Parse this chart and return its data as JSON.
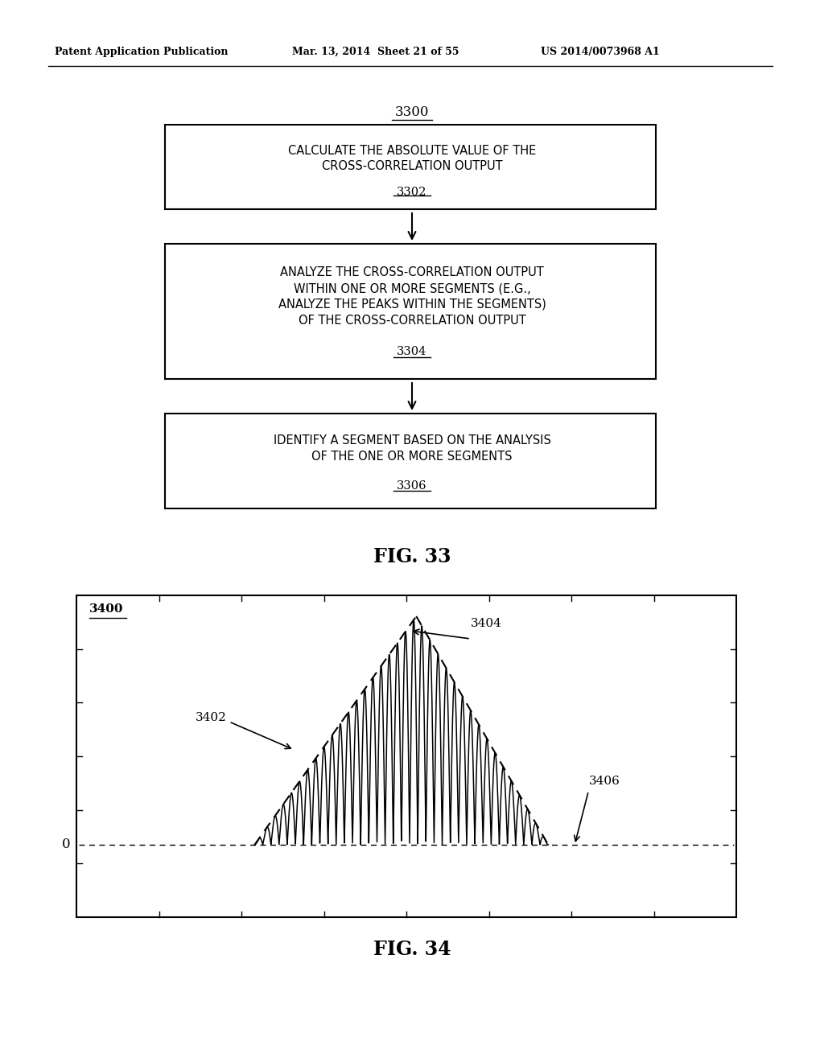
{
  "bg_color": "#ffffff",
  "header_left": "Patent Application Publication",
  "header_mid": "Mar. 13, 2014  Sheet 21 of 55",
  "header_right": "US 2014/0073968 A1",
  "fig33_label": "FIG. 33",
  "fig34_label": "FIG. 34",
  "box1_text": "CALCULATE THE ABSOLUTE VALUE OF THE\nCROSS-CORRELATION OUTPUT",
  "box1_sublabel": "3302",
  "box1_toplabel": "3300",
  "box2_text": "ANALYZE THE CROSS-CORRELATION OUTPUT\nWITHIN ONE OR MORE SEGMENTS (E.G.,\nANALYZE THE PEAKS WITHIN THE SEGMENTS)\nOF THE CROSS-CORRELATION OUTPUT",
  "box2_sublabel": "3304",
  "box3_text": "IDENTIFY A SEGMENT BASED ON THE ANALYSIS\nOF THE ONE OR MORE SEGMENTS",
  "box3_sublabel": "3306",
  "chart_label": "3400",
  "label_3402": "3402",
  "label_3404": "3404",
  "label_3406": "3406",
  "zero_label": "0"
}
